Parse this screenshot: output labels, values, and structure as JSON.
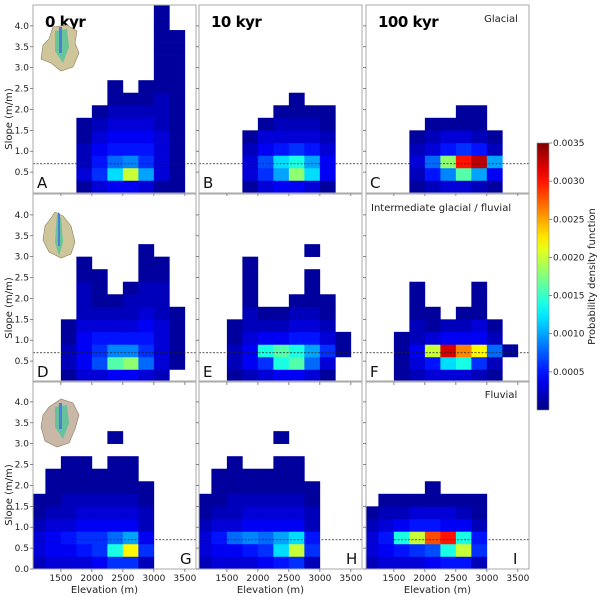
{
  "chart_data": {
    "type": "heatmap",
    "xlabel": "Elevation (m)",
    "ylabel": "Slope (m/m)",
    "xlim": [
      1050,
      3680
    ],
    "ylim": [
      0,
      4.5
    ],
    "xticks": [
      1500,
      2000,
      2500,
      3000,
      3500
    ],
    "yticks_top_rows": [
      0.5,
      1.0,
      1.5,
      2.0,
      2.5,
      3.0,
      3.5,
      4.0
    ],
    "yticks_bottom_row": [
      0.0,
      0.5,
      1.0,
      1.5,
      2.0,
      2.5,
      3.0,
      3.5,
      4.0
    ],
    "reference_line_slope": 0.7,
    "x_bin_edges": [
      1000,
      1250,
      1500,
      1750,
      2000,
      2250,
      2500,
      2750,
      3000,
      3250,
      3500
    ],
    "y_bin_edges": [
      0,
      0.3,
      0.6,
      0.9,
      1.2,
      1.5,
      1.8,
      2.1,
      2.4,
      2.7,
      3.0,
      3.3,
      3.6,
      3.9,
      4.2,
      4.5
    ],
    "density_unit": 0.0001,
    "colorbar": {
      "label": "Probability density function",
      "colormap": "jet",
      "range": [
        0,
        0.0035
      ],
      "ticks": [
        "0.0005",
        "0.0010",
        "0.0015",
        "0.0020",
        "0.0025",
        "0.0030",
        "0.0035"
      ]
    },
    "columns": [
      "0 kyr",
      "10 kyr",
      "100 kyr"
    ],
    "rows": [
      "Glacial",
      "Intermediate glacial / fluvial",
      "Fluvial"
    ],
    "panels": [
      {
        "letter": "A",
        "density": [
          [
            0,
            0,
            0,
            1,
            3,
            4,
            4,
            3,
            1,
            1
          ],
          [
            0,
            0,
            0,
            3,
            6,
            12,
            20,
            10,
            3,
            1
          ],
          [
            0,
            0,
            0,
            2,
            5,
            8,
            9,
            6,
            3,
            1
          ],
          [
            0,
            0,
            0,
            2,
            4,
            5,
            5,
            5,
            3,
            1
          ],
          [
            0,
            0,
            0,
            1,
            3,
            4,
            4,
            4,
            3,
            1
          ],
          [
            0,
            0,
            0,
            1,
            2,
            3,
            3,
            3,
            2,
            1
          ],
          [
            0,
            0,
            0,
            0,
            1,
            2,
            2,
            2,
            2,
            1
          ],
          [
            0,
            0,
            0,
            0,
            0,
            1,
            1,
            1,
            2,
            1
          ],
          [
            0,
            0,
            0,
            0,
            0,
            1,
            0,
            1,
            1,
            1
          ],
          [
            0,
            0,
            0,
            0,
            0,
            0,
            0,
            0,
            1,
            1
          ],
          [
            0,
            0,
            0,
            0,
            0,
            0,
            0,
            0,
            1,
            1
          ],
          [
            0,
            0,
            0,
            0,
            0,
            0,
            0,
            0,
            1,
            1
          ],
          [
            0,
            0,
            0,
            0,
            0,
            0,
            0,
            0,
            1,
            1
          ],
          [
            0,
            0,
            0,
            0,
            0,
            0,
            0,
            0,
            1,
            0
          ],
          [
            0,
            0,
            0,
            0,
            0,
            0,
            0,
            0,
            1,
            0
          ]
        ]
      },
      {
        "letter": "B",
        "density": [
          [
            0,
            0,
            0,
            1,
            3,
            4,
            4,
            3,
            1,
            0
          ],
          [
            0,
            0,
            0,
            3,
            6,
            10,
            18,
            12,
            4,
            0
          ],
          [
            0,
            0,
            0,
            3,
            7,
            12,
            14,
            10,
            4,
            0
          ],
          [
            0,
            0,
            0,
            2,
            4,
            5,
            6,
            5,
            3,
            0
          ],
          [
            0,
            0,
            0,
            1,
            3,
            3,
            3,
            3,
            2,
            0
          ],
          [
            0,
            0,
            0,
            0,
            1,
            2,
            2,
            2,
            1,
            0
          ],
          [
            0,
            0,
            0,
            0,
            0,
            1,
            1,
            1,
            1,
            0
          ],
          [
            0,
            0,
            0,
            0,
            0,
            0,
            1,
            0,
            0,
            0
          ]
        ]
      },
      {
        "letter": "C",
        "density": [
          [
            0,
            0,
            0,
            1,
            2,
            3,
            3,
            2,
            1,
            0
          ],
          [
            0,
            0,
            0,
            2,
            5,
            9,
            16,
            10,
            4,
            0
          ],
          [
            0,
            0,
            0,
            3,
            8,
            18,
            30,
            33,
            10,
            0
          ],
          [
            0,
            0,
            0,
            2,
            3,
            5,
            6,
            5,
            2,
            0
          ],
          [
            0,
            0,
            0,
            1,
            2,
            3,
            3,
            2,
            1,
            0
          ],
          [
            0,
            0,
            0,
            0,
            1,
            1,
            1,
            1,
            0,
            0
          ],
          [
            0,
            0,
            0,
            0,
            0,
            0,
            1,
            1,
            0,
            0
          ]
        ]
      },
      {
        "letter": "D",
        "density": [
          [
            0,
            0,
            1,
            3,
            3,
            4,
            4,
            3,
            2,
            0
          ],
          [
            0,
            0,
            2,
            4,
            7,
            16,
            18,
            8,
            3,
            1
          ],
          [
            0,
            0,
            2,
            4,
            6,
            9,
            9,
            6,
            3,
            1
          ],
          [
            0,
            0,
            1,
            4,
            5,
            5,
            5,
            5,
            3,
            1
          ],
          [
            0,
            0,
            1,
            3,
            3,
            3,
            3,
            4,
            3,
            1
          ],
          [
            0,
            0,
            0,
            2,
            2,
            2,
            2,
            3,
            2,
            1
          ],
          [
            0,
            0,
            0,
            2,
            1,
            1,
            2,
            2,
            2,
            0
          ],
          [
            0,
            0,
            0,
            2,
            1,
            0,
            1,
            2,
            2,
            0
          ],
          [
            0,
            0,
            0,
            1,
            1,
            0,
            0,
            1,
            1,
            0
          ],
          [
            0,
            0,
            0,
            1,
            0,
            0,
            0,
            1,
            1,
            0
          ],
          [
            0,
            0,
            0,
            0,
            0,
            0,
            0,
            1,
            0,
            0
          ]
        ]
      },
      {
        "letter": "E",
        "density": [
          [
            0,
            0,
            1,
            2,
            3,
            4,
            4,
            3,
            1,
            0
          ],
          [
            0,
            0,
            2,
            4,
            6,
            14,
            16,
            8,
            3,
            0
          ],
          [
            0,
            0,
            2,
            4,
            14,
            16,
            14,
            10,
            6,
            1
          ],
          [
            0,
            0,
            1,
            3,
            4,
            4,
            5,
            5,
            3,
            1
          ],
          [
            0,
            0,
            1,
            2,
            2,
            2,
            3,
            3,
            2,
            0
          ],
          [
            0,
            0,
            0,
            2,
            1,
            1,
            2,
            2,
            1,
            0
          ],
          [
            0,
            0,
            0,
            1,
            0,
            0,
            1,
            1,
            1,
            0
          ],
          [
            0,
            0,
            0,
            1,
            0,
            0,
            0,
            1,
            0,
            0
          ],
          [
            0,
            0,
            0,
            1,
            0,
            0,
            0,
            1,
            0,
            0
          ],
          [
            0,
            0,
            0,
            1,
            0,
            0,
            0,
            0,
            0,
            0
          ],
          [
            0,
            0,
            0,
            0,
            0,
            0,
            0,
            1,
            0,
            0
          ]
        ]
      },
      {
        "letter": "F",
        "density": [
          [
            0,
            0,
            1,
            2,
            3,
            3,
            3,
            2,
            1,
            0
          ],
          [
            0,
            0,
            1,
            3,
            5,
            12,
            14,
            6,
            2,
            0
          ],
          [
            0,
            0,
            1,
            4,
            20,
            32,
            26,
            22,
            8,
            1
          ],
          [
            0,
            0,
            1,
            2,
            3,
            4,
            4,
            4,
            2,
            0
          ],
          [
            0,
            0,
            0,
            2,
            1,
            2,
            2,
            3,
            1,
            0
          ],
          [
            0,
            0,
            0,
            1,
            1,
            0,
            1,
            1,
            0,
            0
          ],
          [
            0,
            0,
            0,
            1,
            0,
            0,
            0,
            1,
            0,
            0
          ],
          [
            0,
            0,
            0,
            1,
            0,
            0,
            0,
            1,
            0,
            0
          ]
        ]
      },
      {
        "letter": "G",
        "density": [
          [
            2,
            3,
            3,
            3,
            4,
            6,
            6,
            2,
            0,
            0
          ],
          [
            3,
            4,
            4,
            5,
            6,
            14,
            22,
            6,
            0,
            0
          ],
          [
            3,
            4,
            5,
            6,
            6,
            8,
            10,
            4,
            0,
            0
          ],
          [
            2,
            3,
            3,
            4,
            4,
            4,
            4,
            2,
            0,
            0
          ],
          [
            1,
            2,
            2,
            3,
            3,
            3,
            3,
            2,
            0,
            0
          ],
          [
            1,
            1,
            2,
            2,
            2,
            2,
            2,
            1,
            0,
            0
          ],
          [
            0,
            1,
            1,
            1,
            1,
            1,
            1,
            1,
            0,
            0
          ],
          [
            0,
            1,
            1,
            1,
            1,
            1,
            1,
            0,
            0,
            0
          ],
          [
            0,
            0,
            1,
            1,
            0,
            1,
            1,
            0,
            0,
            0
          ],
          [
            0,
            0,
            0,
            0,
            0,
            0,
            0,
            0,
            0,
            0
          ],
          [
            0,
            0,
            0,
            0,
            0,
            1,
            0,
            0,
            0,
            0
          ]
        ]
      },
      {
        "letter": "H",
        "density": [
          [
            2,
            3,
            3,
            3,
            4,
            5,
            6,
            2,
            0,
            0
          ],
          [
            3,
            4,
            4,
            5,
            6,
            12,
            20,
            6,
            0,
            0
          ],
          [
            3,
            5,
            8,
            9,
            8,
            10,
            12,
            5,
            0,
            0
          ],
          [
            2,
            3,
            3,
            4,
            4,
            4,
            4,
            2,
            0,
            0
          ],
          [
            1,
            2,
            2,
            3,
            3,
            3,
            3,
            2,
            0,
            0
          ],
          [
            1,
            1,
            2,
            2,
            2,
            2,
            2,
            1,
            0,
            0
          ],
          [
            0,
            1,
            1,
            1,
            1,
            1,
            1,
            1,
            0,
            0
          ],
          [
            0,
            1,
            1,
            1,
            1,
            1,
            1,
            0,
            0,
            0
          ],
          [
            0,
            0,
            1,
            0,
            0,
            1,
            1,
            0,
            0,
            0
          ],
          [
            0,
            0,
            0,
            0,
            0,
            0,
            0,
            0,
            0,
            0
          ],
          [
            0,
            0,
            0,
            0,
            0,
            1,
            0,
            0,
            0,
            0
          ]
        ]
      },
      {
        "letter": "I",
        "density": [
          [
            2,
            3,
            3,
            3,
            4,
            5,
            5,
            2,
            0,
            0
          ],
          [
            3,
            4,
            5,
            6,
            7,
            14,
            20,
            6,
            0,
            0
          ],
          [
            3,
            5,
            14,
            20,
            28,
            30,
            14,
            5,
            0,
            0
          ],
          [
            2,
            3,
            4,
            5,
            5,
            4,
            4,
            2,
            0,
            0
          ],
          [
            1,
            2,
            2,
            3,
            3,
            3,
            2,
            1,
            0,
            0
          ],
          [
            0,
            1,
            1,
            1,
            1,
            1,
            1,
            1,
            0,
            0
          ],
          [
            0,
            0,
            0,
            0,
            1,
            0,
            0,
            0,
            0,
            0
          ]
        ]
      }
    ]
  }
}
